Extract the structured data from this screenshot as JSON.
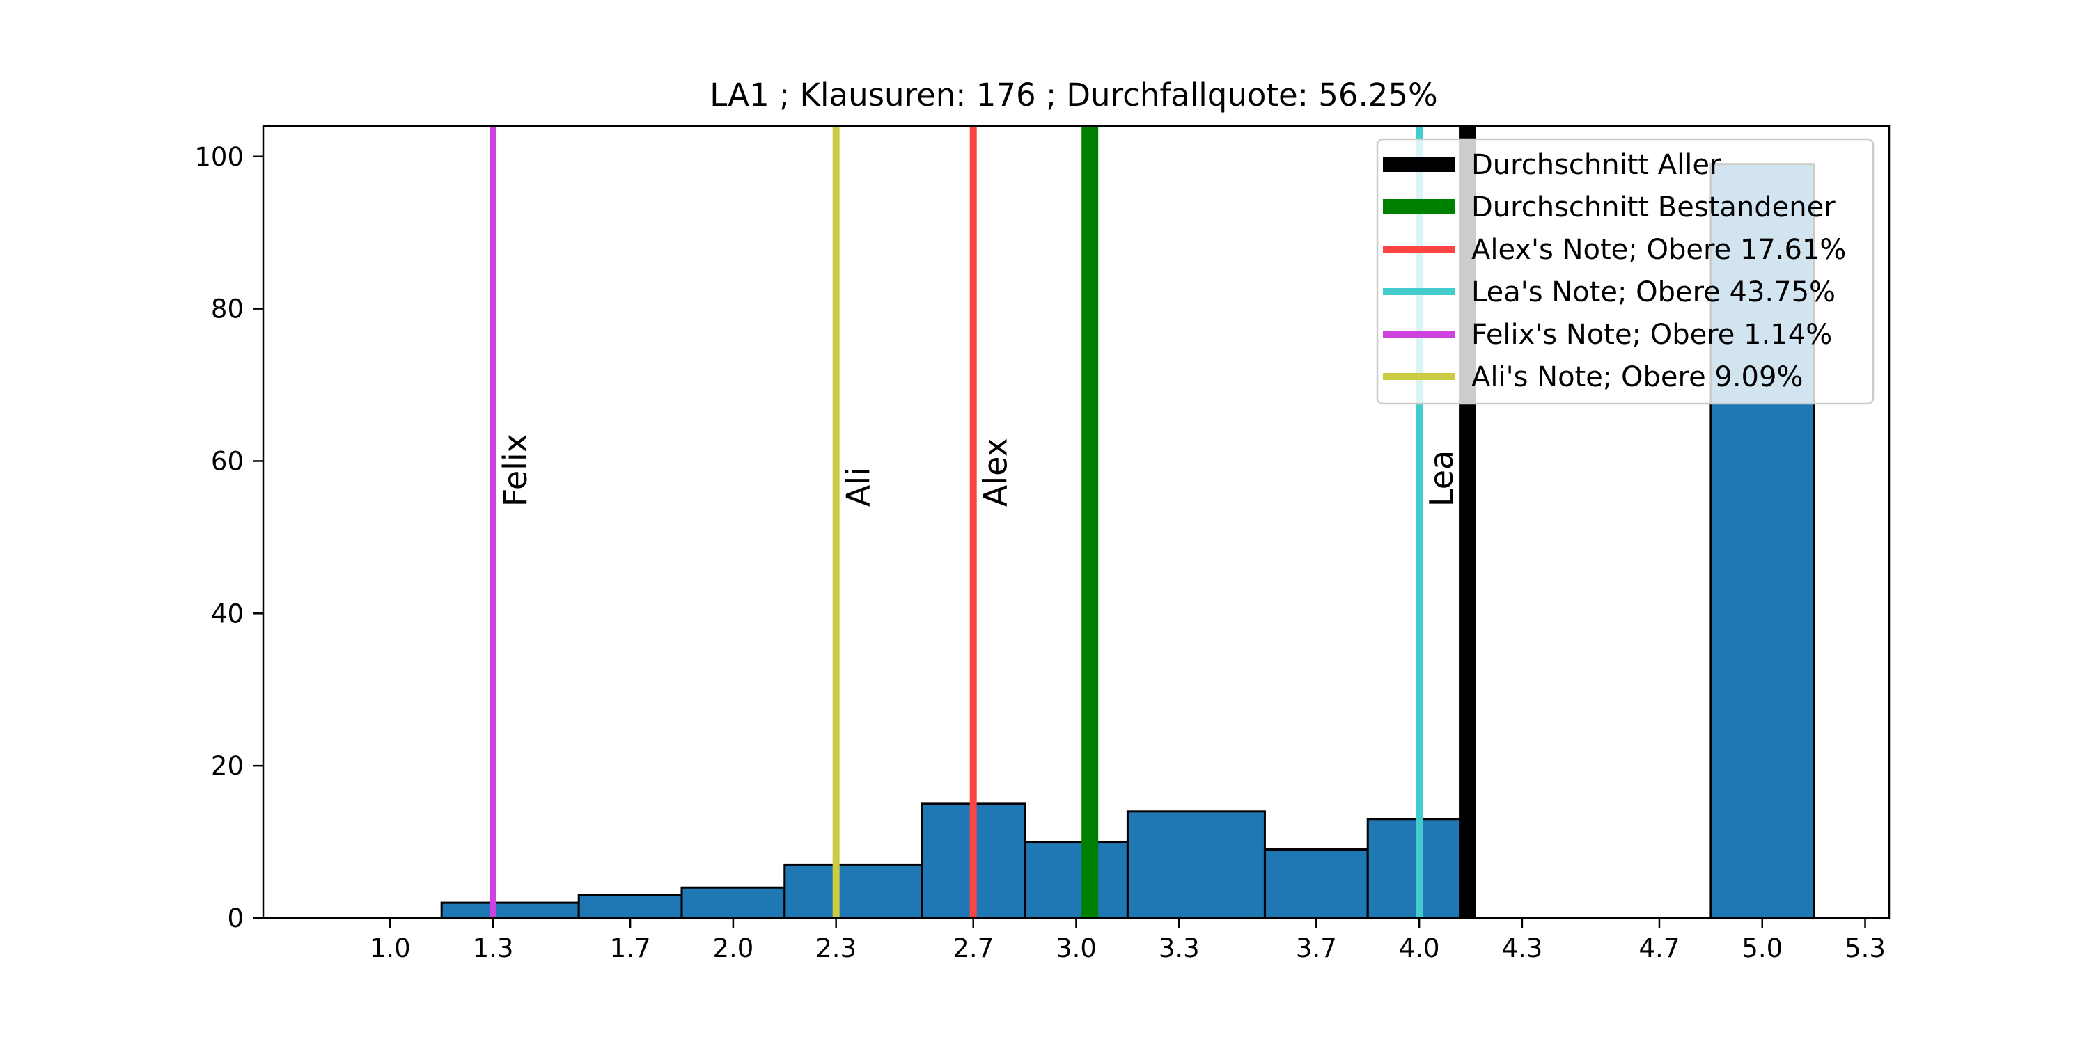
{
  "chart_data": {
    "type": "bar",
    "title": "LA1 ; Klausuren: 176 ; Durchfallquote: 56.25%",
    "xlabel": "",
    "ylabel": "",
    "xlim": [
      0.63,
      5.37
    ],
    "ylim": [
      0,
      104
    ],
    "grid": false,
    "legend_position": "top-right",
    "x_ticks": [
      {
        "value": 1.0,
        "label": "1.0"
      },
      {
        "value": 1.3,
        "label": "1.3"
      },
      {
        "value": 1.7,
        "label": "1.7"
      },
      {
        "value": 2.0,
        "label": "2.0"
      },
      {
        "value": 2.3,
        "label": "2.3"
      },
      {
        "value": 2.7,
        "label": "2.7"
      },
      {
        "value": 3.0,
        "label": "3.0"
      },
      {
        "value": 3.3,
        "label": "3.3"
      },
      {
        "value": 3.7,
        "label": "3.7"
      },
      {
        "value": 4.0,
        "label": "4.0"
      },
      {
        "value": 4.3,
        "label": "4.3"
      },
      {
        "value": 4.7,
        "label": "4.7"
      },
      {
        "value": 5.0,
        "label": "5.0"
      },
      {
        "value": 5.3,
        "label": "5.3"
      }
    ],
    "y_ticks": [
      {
        "value": 0,
        "label": "0"
      },
      {
        "value": 20,
        "label": "20"
      },
      {
        "value": 40,
        "label": "40"
      },
      {
        "value": 60,
        "label": "60"
      },
      {
        "value": 80,
        "label": "80"
      },
      {
        "value": 100,
        "label": "100"
      }
    ],
    "bars": [
      {
        "x0": 0.85,
        "x1": 1.15,
        "value": 0
      },
      {
        "x0": 1.15,
        "x1": 1.55,
        "value": 2
      },
      {
        "x0": 1.55,
        "x1": 1.85,
        "value": 3
      },
      {
        "x0": 1.85,
        "x1": 2.15,
        "value": 4
      },
      {
        "x0": 2.15,
        "x1": 2.55,
        "value": 7
      },
      {
        "x0": 2.55,
        "x1": 2.85,
        "value": 15
      },
      {
        "x0": 2.85,
        "x1": 3.15,
        "value": 10
      },
      {
        "x0": 3.15,
        "x1": 3.55,
        "value": 14
      },
      {
        "x0": 3.55,
        "x1": 3.85,
        "value": 9
      },
      {
        "x0": 3.85,
        "x1": 4.15,
        "value": 13
      },
      {
        "x0": 4.15,
        "x1": 4.55,
        "value": 0
      },
      {
        "x0": 4.55,
        "x1": 4.85,
        "value": 0
      },
      {
        "x0": 4.85,
        "x1": 5.15,
        "value": 99
      }
    ],
    "bar_color": "#1f77b4",
    "vertical_lines": [
      {
        "name": "felix",
        "x": 1.3,
        "color": "#cc44dd",
        "width": "thin",
        "label": "Felix"
      },
      {
        "name": "ali",
        "x": 2.3,
        "color": "#cccc44",
        "width": "thin",
        "label": "Ali"
      },
      {
        "name": "alex",
        "x": 2.7,
        "color": "#ff4444",
        "width": "thin",
        "label": "Alex"
      },
      {
        "name": "passed-average",
        "x": 3.04,
        "color": "#008000",
        "width": "thick",
        "label": ""
      },
      {
        "name": "lea",
        "x": 4.0,
        "color": "#44cccc",
        "width": "thin",
        "label": "Lea"
      },
      {
        "name": "overall-average",
        "x": 4.14,
        "color": "#000000",
        "width": "thick",
        "label": ""
      }
    ],
    "legend": [
      {
        "label": "Durchschnitt Aller",
        "color": "#000000",
        "width": "thick"
      },
      {
        "label": "Durchschnitt Bestandener",
        "color": "#008000",
        "width": "thick"
      },
      {
        "label": "Alex's Note; Obere 17.61%",
        "color": "#ff4444",
        "width": "thin"
      },
      {
        "label": "Lea's Note; Obere 43.75%",
        "color": "#44cccc",
        "width": "thin"
      },
      {
        "label": "Felix's Note; Obere 1.14%",
        "color": "#cc44dd",
        "width": "thin"
      },
      {
        "label": "Ali's Note; Obere 9.09%",
        "color": "#cccc44",
        "width": "thin"
      }
    ]
  }
}
